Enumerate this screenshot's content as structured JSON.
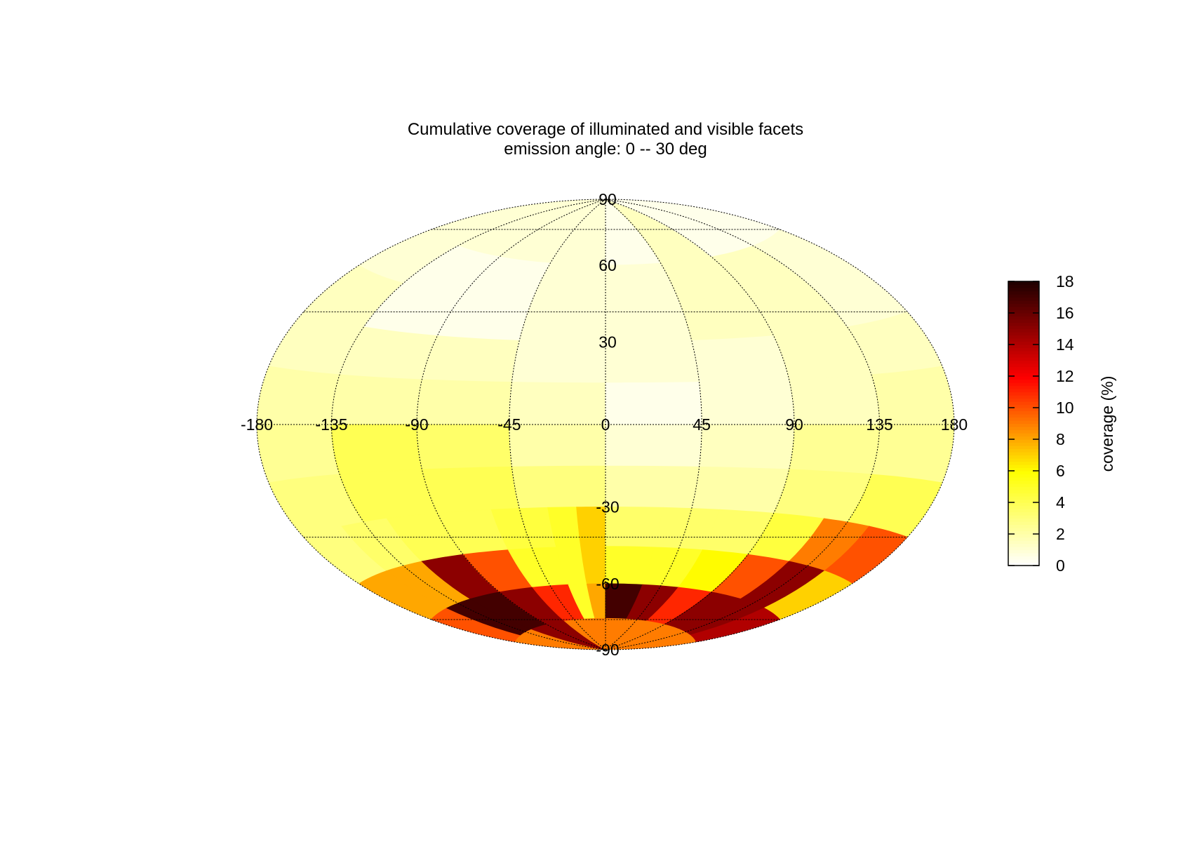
{
  "chart_data": {
    "type": "heatmap",
    "projection": "hammer-aitoff",
    "title": "Cumulative coverage of illuminated and visible facets",
    "subtitle": "emission angle:  0 -- 30 deg",
    "xlabel": "",
    "ylabel": "",
    "xlim": [
      -180,
      180
    ],
    "ylim": [
      -90,
      90
    ],
    "grid": true,
    "x_ticks": [
      "-180",
      "-135",
      "-90",
      "-45",
      "0",
      "45",
      "90",
      "135",
      "180"
    ],
    "y_ticks": [
      "90",
      "60",
      "30",
      "-30",
      "-60",
      "-90"
    ],
    "colorbar": {
      "label": "coverage (%)",
      "range": [
        0,
        18
      ],
      "ticks": [
        "0",
        "2",
        "4",
        "6",
        "8",
        "10",
        "12",
        "14",
        "16",
        "18"
      ],
      "colormap": "hot (white to black)"
    },
    "lat_bands": [
      {
        "lat": [
          60,
          90
        ],
        "lon_edges": [
          -180,
          -135,
          -90,
          -45,
          0,
          45,
          90,
          135,
          180
        ],
        "values": [
          1,
          1,
          1,
          1,
          0.5,
          1.5,
          0.5,
          0.5
        ]
      },
      {
        "lat": [
          45,
          60
        ],
        "lon_edges": [
          -180,
          -135,
          -90,
          -45,
          0,
          45,
          90,
          135,
          180
        ],
        "values": [
          1,
          0.5,
          0.5,
          1,
          1,
          1.5,
          1.5,
          1
        ]
      },
      {
        "lat": [
          30,
          45
        ],
        "lon_edges": [
          -180,
          -135,
          -90,
          -45,
          0,
          45,
          90,
          135,
          180
        ],
        "values": [
          1.5,
          0.5,
          0.5,
          1,
          1,
          1.5,
          1.5,
          1
        ]
      },
      {
        "lat": [
          15,
          30
        ],
        "lon_edges": [
          -180,
          -135,
          -90,
          -45,
          0,
          45,
          90,
          135,
          180
        ],
        "values": [
          1.5,
          1.5,
          1.5,
          1,
          1,
          1,
          1.5,
          1.5
        ]
      },
      {
        "lat": [
          0,
          15
        ],
        "lon_edges": [
          -180,
          -135,
          -90,
          -45,
          0,
          45,
          90,
          135,
          180
        ],
        "values": [
          2,
          2,
          2,
          1.5,
          0.5,
          1,
          1.5,
          2
        ]
      },
      {
        "lat": [
          -15,
          0
        ],
        "lon_edges": [
          -180,
          -135,
          -90,
          -45,
          0,
          45,
          90,
          135,
          180
        ],
        "values": [
          2.5,
          4,
          3.5,
          2,
          1,
          1.5,
          2.5,
          2.5
        ]
      },
      {
        "lat": [
          -30,
          -15
        ],
        "lon_edges": [
          -180,
          -135,
          -90,
          -45,
          0,
          45,
          90,
          135,
          180
        ],
        "values": [
          3,
          4,
          4,
          3,
          2,
          2,
          3,
          4
        ]
      },
      {
        "lat": [
          -45,
          -30
        ],
        "lon_edges": [
          -180,
          -150,
          -120,
          -90,
          -60,
          -30,
          -15,
          0,
          30,
          60,
          90,
          120,
          150,
          180
        ],
        "values": [
          3,
          3.5,
          4,
          4,
          4.5,
          5,
          7,
          3.5,
          3.5,
          3.5,
          4.5,
          9,
          10
        ]
      },
      {
        "lat": [
          -60,
          -45
        ],
        "lon_edges": [
          -180,
          -150,
          -120,
          -90,
          -60,
          -30,
          -15,
          0,
          30,
          60,
          90,
          120,
          150,
          180
        ],
        "values": [
          8,
          8,
          15,
          10,
          5,
          5,
          7,
          5,
          5,
          6,
          10,
          15,
          7
        ]
      },
      {
        "lat": [
          -75,
          -60
        ],
        "lon_edges": [
          -180,
          -150,
          -120,
          -90,
          -60,
          -30,
          -15,
          0,
          30,
          60,
          90,
          120,
          150,
          180
        ],
        "values": [
          10,
          17,
          17,
          15,
          11,
          5,
          8,
          17,
          15,
          11,
          15,
          15,
          14
        ]
      },
      {
        "lat": [
          -90,
          -75
        ],
        "lon_edges": [
          -180,
          -120,
          -60,
          0,
          60,
          120,
          180
        ],
        "values": [
          9,
          15,
          9,
          9,
          9,
          9
        ]
      }
    ]
  }
}
